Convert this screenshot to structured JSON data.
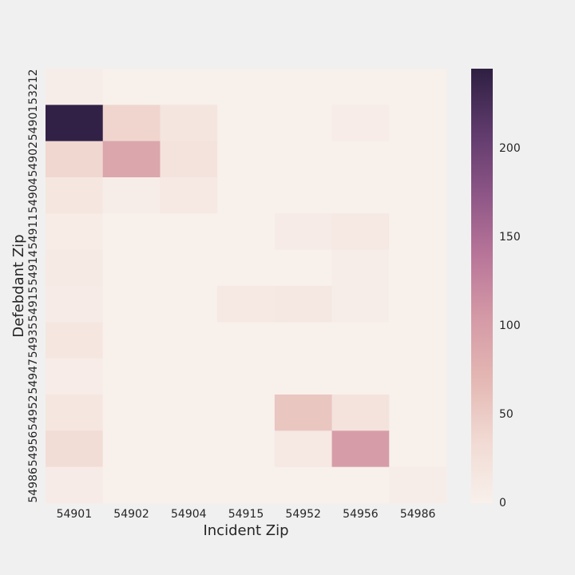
{
  "chart_data": {
    "type": "heatmap",
    "xlabel": "Incident Zip",
    "ylabel": "Defebdant Zip",
    "x_categories": [
      "54901",
      "54902",
      "54904",
      "54915",
      "54952",
      "54956",
      "54986"
    ],
    "y_categories": [
      "53212",
      "54901",
      "54902",
      "54904",
      "54911",
      "54914",
      "54915",
      "54935",
      "54947",
      "54952",
      "54956",
      "54986"
    ],
    "values": [
      [
        5,
        0,
        0,
        0,
        0,
        0,
        0
      ],
      [
        242,
        40,
        18,
        0,
        0,
        6,
        0
      ],
      [
        38,
        90,
        20,
        0,
        0,
        0,
        0
      ],
      [
        16,
        5,
        12,
        0,
        0,
        0,
        0
      ],
      [
        7,
        0,
        0,
        0,
        8,
        12,
        0
      ],
      [
        10,
        0,
        0,
        0,
        0,
        4,
        0
      ],
      [
        8,
        0,
        0,
        12,
        14,
        5,
        0
      ],
      [
        16,
        0,
        0,
        0,
        0,
        0,
        0
      ],
      [
        6,
        0,
        0,
        0,
        0,
        0,
        0
      ],
      [
        16,
        0,
        0,
        0,
        55,
        20,
        0
      ],
      [
        30,
        0,
        0,
        0,
        12,
        100,
        0
      ],
      [
        8,
        0,
        0,
        0,
        0,
        0,
        4
      ]
    ],
    "colorbar": {
      "min": 0,
      "max": 245,
      "ticks": [
        0,
        50,
        100,
        150,
        200
      ],
      "tick_labels": [
        "0",
        "50",
        "100",
        "150",
        "200"
      ]
    },
    "colormap": {
      "name": "cubehelix-light",
      "stops": [
        "#f8f0eb",
        "#f1dad3",
        "#e4b7b3",
        "#d499a6",
        "#b87599",
        "#8c5586",
        "#5e3a6b",
        "#2e1f42"
      ]
    },
    "grid": false
  }
}
